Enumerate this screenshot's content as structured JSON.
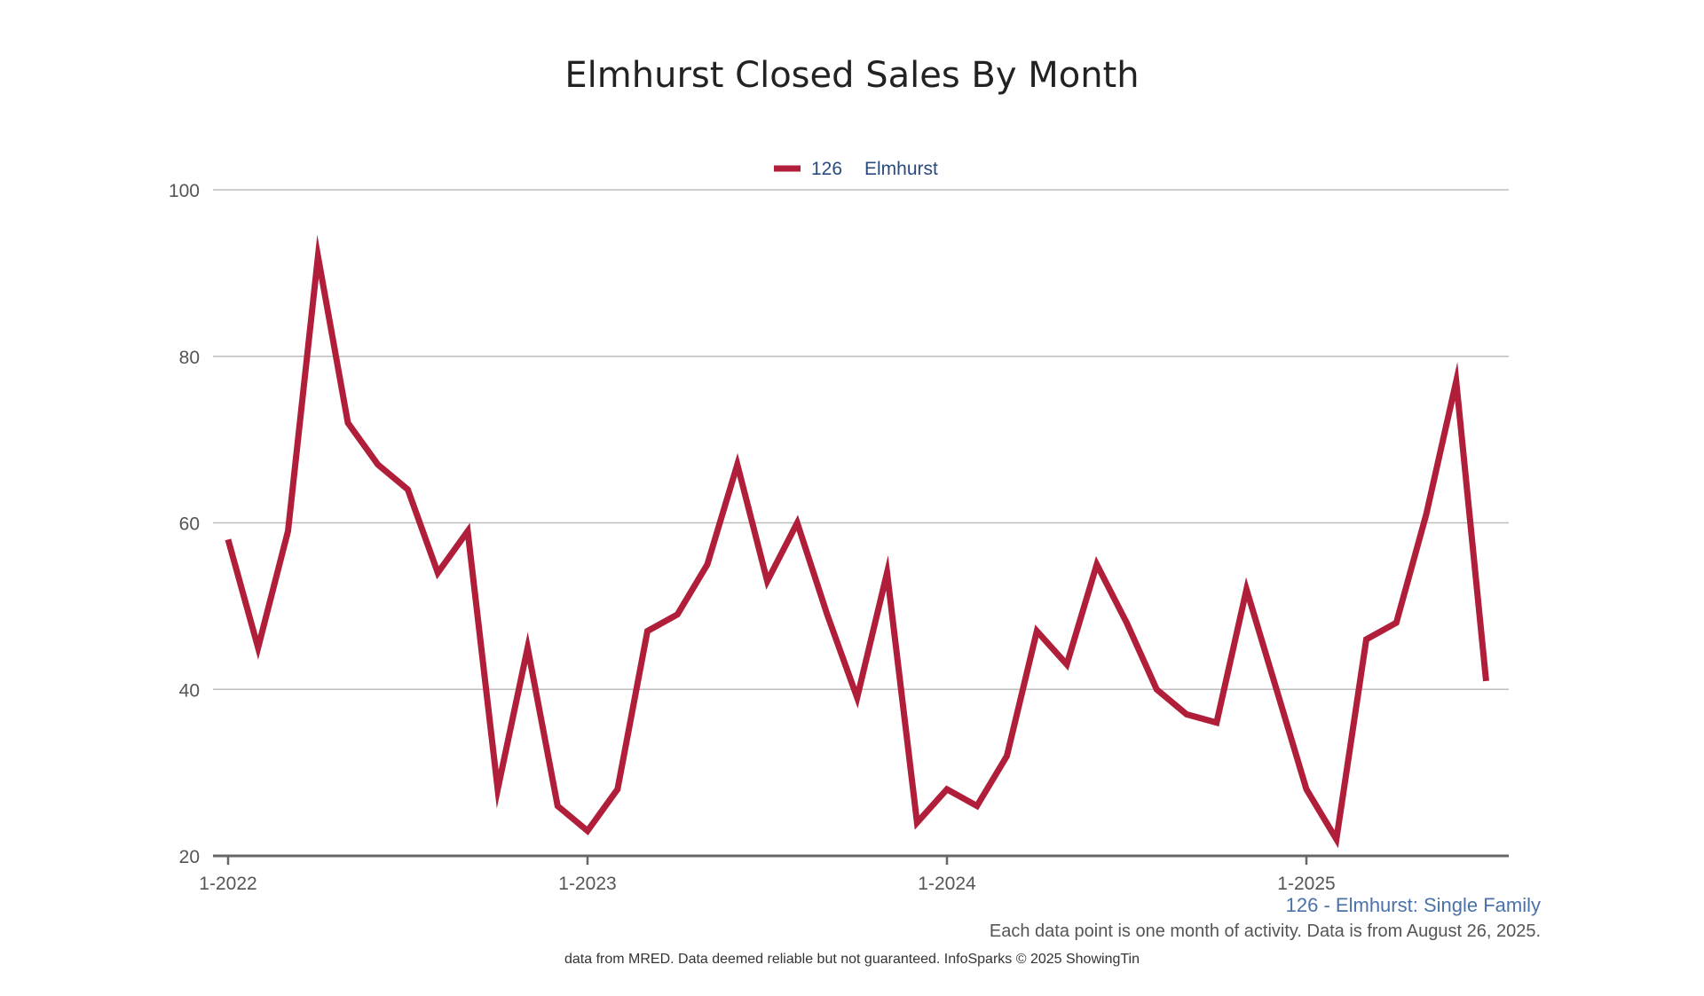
{
  "chart_data": {
    "type": "line",
    "title": "Elmhurst Closed Sales By Month",
    "legend": {
      "placement": "top-center",
      "entries": [
        {
          "code": "126",
          "label": "Elmhurst"
        }
      ]
    },
    "series": [
      {
        "name": "126 Elmhurst",
        "color": "#b01e3a",
        "values": [
          58,
          45,
          59,
          92,
          72,
          67,
          64,
          54,
          59,
          28,
          45,
          26,
          23,
          28,
          47,
          49,
          55,
          67,
          53,
          60,
          49,
          39,
          54,
          24,
          28,
          26,
          32,
          47,
          43,
          55,
          48,
          40,
          37,
          36,
          52,
          40,
          28,
          22,
          46,
          48,
          61,
          77,
          41
        ]
      }
    ],
    "x_start": "1-2022",
    "x_ticks": [
      "1-2022",
      "1-2023",
      "1-2024",
      "1-2025"
    ],
    "y_ticks": [
      "100",
      "80",
      "60",
      "40",
      "20"
    ],
    "ylim": [
      20,
      100
    ],
    "grid": true,
    "xlabel": "",
    "ylabel": ""
  },
  "subtitle": "126 - Elmhurst: Single Family",
  "note": "Each data point is one month of activity. Data is from August 26, 2025.",
  "credit": "data from MRED. Data deemed reliable but not guaranteed. InfoSparks © 2025 ShowingTin"
}
